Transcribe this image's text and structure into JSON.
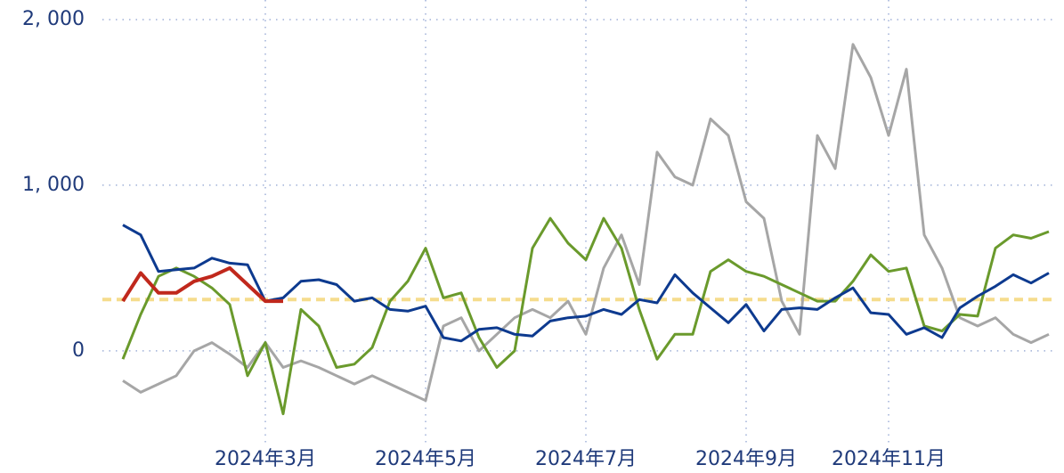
{
  "chart_data": {
    "type": "line",
    "x": [
      null,
      null,
      null,
      null,
      null,
      null,
      null,
      null,
      "2024年3月",
      null,
      null,
      null,
      null,
      null,
      null,
      null,
      null,
      "2024年5月",
      null,
      null,
      null,
      null,
      null,
      null,
      null,
      null,
      "2024年7月",
      null,
      null,
      null,
      null,
      null,
      null,
      null,
      null,
      "2024年9月",
      null,
      null,
      null,
      null,
      null,
      null,
      null,
      "2024年11月",
      null,
      null,
      null,
      null,
      null,
      null,
      null,
      null,
      null
    ],
    "series": [
      {
        "color": "#a6a6a6",
        "values": [
          -180,
          -250,
          -200,
          -150,
          0,
          50,
          -20,
          -100,
          50,
          -100,
          -60,
          -100,
          -150,
          -200,
          -150,
          -200,
          -250,
          -300,
          150,
          200,
          0,
          100,
          200,
          250,
          200,
          300,
          100,
          500,
          700,
          400,
          1200,
          1050,
          1000,
          1400,
          1300,
          900,
          800,
          300,
          100,
          1300,
          1100,
          1850,
          1650,
          1300,
          1700,
          700,
          500,
          200,
          150,
          200,
          100,
          50,
          100
        ]
      },
      {
        "color": "#6a9a2c",
        "values": [
          -50,
          220,
          450,
          500,
          450,
          380,
          280,
          -150,
          50,
          -380,
          250,
          150,
          -100,
          -80,
          20,
          300,
          420,
          620,
          320,
          350,
          80,
          -100,
          0,
          620,
          800,
          650,
          550,
          800,
          620,
          250,
          -50,
          100,
          100,
          480,
          550,
          480,
          450,
          400,
          350,
          300,
          300,
          420,
          580,
          480,
          500,
          150,
          120,
          220,
          210,
          620,
          700,
          680,
          720
        ]
      },
      {
        "color": "#0d3a8f",
        "values": [
          760,
          700,
          480,
          490,
          500,
          560,
          530,
          520,
          300,
          320,
          420,
          430,
          400,
          300,
          320,
          250,
          240,
          270,
          80,
          60,
          130,
          140,
          100,
          90,
          180,
          200,
          210,
          250,
          220,
          310,
          290,
          460,
          350,
          260,
          170,
          280,
          120,
          250,
          260,
          250,
          320,
          380,
          230,
          220,
          100,
          140,
          80,
          260,
          330,
          390,
          460,
          410,
          470
        ]
      },
      {
        "color": "#c0281c",
        "values": [
          300,
          470,
          350,
          350,
          420,
          450,
          500,
          400,
          300,
          300,
          null,
          null,
          null,
          null,
          null,
          null,
          null,
          null,
          null,
          null,
          null,
          null,
          null,
          null,
          null,
          null,
          null,
          null,
          null,
          null,
          null,
          null,
          null,
          null,
          null,
          null,
          null,
          null,
          null,
          null,
          null,
          null,
          null,
          null,
          null,
          null,
          null,
          null,
          null,
          null,
          null,
          null,
          null
        ]
      }
    ],
    "reference_line": {
      "value": 310,
      "color": "#f5dc8c"
    },
    "ylim": [
      -737,
      2118
    ],
    "yticks": [
      0,
      {
        "value": 1000,
        "label": "1, 000"
      },
      {
        "value": 2000,
        "label": "2, 000"
      }
    ],
    "grid": true
  }
}
